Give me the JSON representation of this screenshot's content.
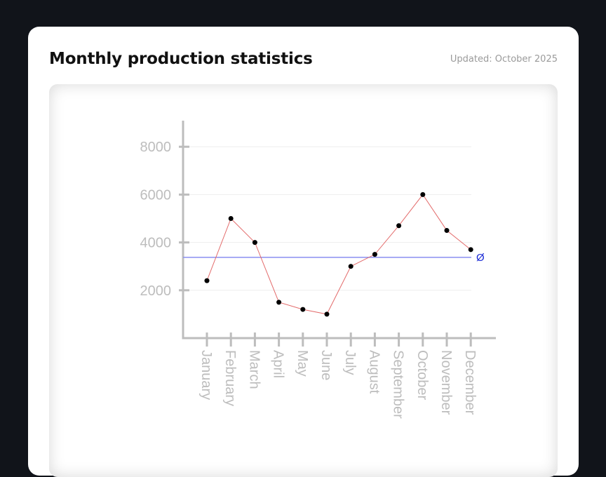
{
  "header": {
    "title": "Monthly production statistics",
    "updated": "Updated: October 2025"
  },
  "chart_data": {
    "type": "line",
    "categories": [
      "January",
      "February",
      "March",
      "April",
      "May",
      "June",
      "July",
      "August",
      "September",
      "October",
      "November",
      "December"
    ],
    "series": [
      {
        "values": [
          2400,
          5000,
          4000,
          1500,
          1200,
          1000,
          3000,
          3500,
          4700,
          6000,
          4500,
          3700
        ]
      }
    ],
    "yticks": [
      2000,
      4000,
      6000,
      8000
    ],
    "ylim": [
      0,
      9000
    ],
    "average": {
      "value": 3375,
      "label": "Ø"
    },
    "grid": true,
    "colors": {
      "line": "#e36b6b",
      "points": "#000000",
      "average": "#8a8ff0",
      "axis": "#bdbdbd",
      "grid": "#eeeeee"
    }
  }
}
